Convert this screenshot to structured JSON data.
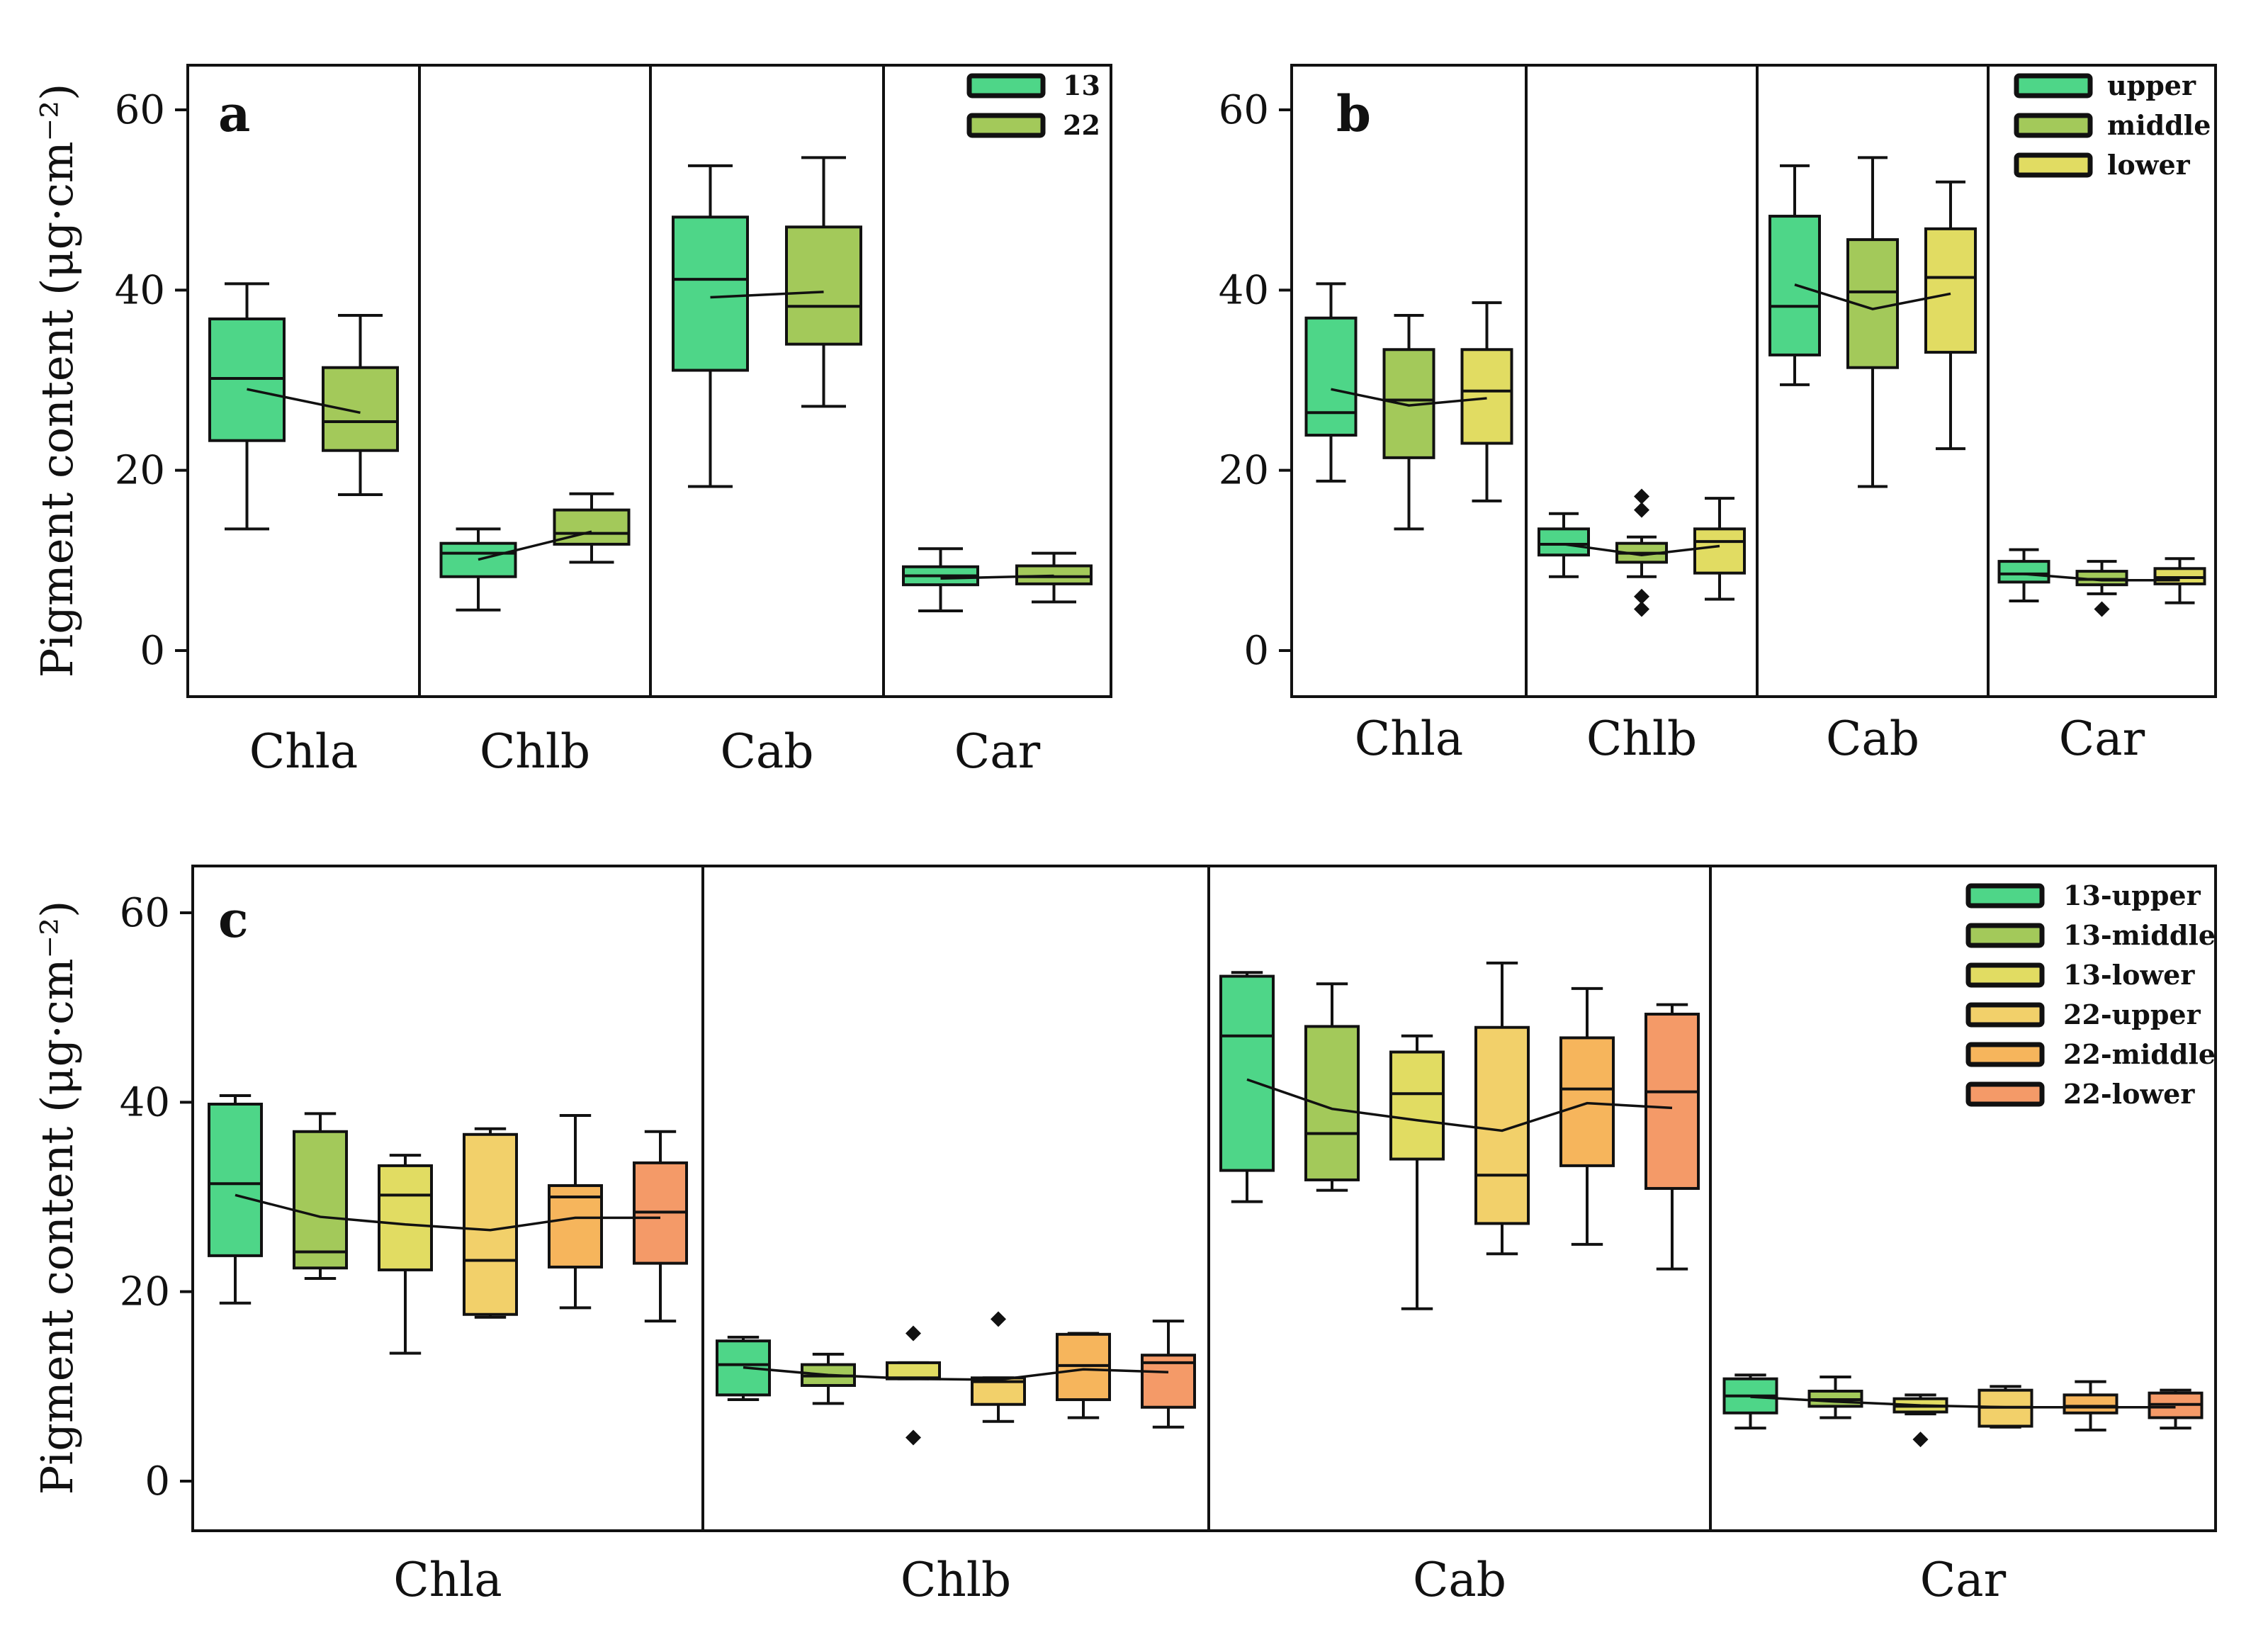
{
  "chart_data": [
    {
      "id": "a",
      "type": "box",
      "panel_label": "a",
      "ylabel": "Pigment content (μg·cm⁻²)",
      "ylim": [
        -5,
        65
      ],
      "yticks": [
        0,
        20,
        40,
        60
      ],
      "categories": [
        "Chla",
        "Chlb",
        "Cab",
        "Car"
      ],
      "legend": [
        "13",
        "22"
      ],
      "colors": [
        "#4ed688",
        "#a3c95a"
      ],
      "groups": [
        {
          "category": "Chla",
          "boxes": [
            {
              "series": "13",
              "min": 13.5,
              "q1": 23.3,
              "median": 30.2,
              "q3": 36.8,
              "max": 40.7,
              "mean": 29,
              "outliers": []
            },
            {
              "series": "22",
              "min": 17.3,
              "q1": 22.2,
              "median": 25.4,
              "q3": 31.4,
              "max": 37.2,
              "mean": 26.4,
              "outliers": []
            }
          ]
        },
        {
          "category": "Chlb",
          "boxes": [
            {
              "series": "13",
              "min": 4.5,
              "q1": 8.2,
              "median": 10.8,
              "q3": 11.9,
              "max": 13.5,
              "mean": 10.1,
              "outliers": []
            },
            {
              "series": "22",
              "min": 9.8,
              "q1": 11.8,
              "median": 13.0,
              "q3": 15.6,
              "max": 17.4,
              "mean": 13.2,
              "outliers": []
            }
          ]
        },
        {
          "category": "Cab",
          "boxes": [
            {
              "series": "13",
              "min": 18.2,
              "q1": 31.1,
              "median": 41.2,
              "q3": 48.1,
              "max": 53.8,
              "mean": 39.2,
              "outliers": []
            },
            {
              "series": "22",
              "min": 27.1,
              "q1": 34.0,
              "median": 38.2,
              "q3": 47.0,
              "max": 54.7,
              "mean": 39.8,
              "outliers": []
            }
          ]
        },
        {
          "category": "Car",
          "boxes": [
            {
              "series": "13",
              "min": 4.4,
              "q1": 7.3,
              "median": 8.3,
              "q3": 9.3,
              "max": 11.3,
              "mean": 8.0,
              "outliers": []
            },
            {
              "series": "22",
              "min": 5.4,
              "q1": 7.4,
              "median": 8.2,
              "q3": 9.4,
              "max": 10.8,
              "mean": 8.3,
              "outliers": []
            }
          ]
        }
      ]
    },
    {
      "id": "b",
      "type": "box",
      "panel_label": "b",
      "ylabel": "",
      "ylim": [
        -5,
        65
      ],
      "yticks": [
        0,
        20,
        40,
        60
      ],
      "categories": [
        "Chla",
        "Chlb",
        "Cab",
        "Car"
      ],
      "legend": [
        "upper",
        "middle",
        "lower"
      ],
      "colors": [
        "#4ed688",
        "#a3c95a",
        "#e1dc62"
      ],
      "groups": [
        {
          "category": "Chla",
          "boxes": [
            {
              "series": "upper",
              "min": 18.8,
              "q1": 23.9,
              "median": 26.4,
              "q3": 36.9,
              "max": 40.7,
              "mean": 29,
              "outliers": []
            },
            {
              "series": "middle",
              "min": 13.5,
              "q1": 21.4,
              "median": 27.8,
              "q3": 33.4,
              "max": 37.2,
              "mean": 27.2,
              "outliers": []
            },
            {
              "series": "lower",
              "min": 16.6,
              "q1": 23.0,
              "median": 28.8,
              "q3": 33.4,
              "max": 38.6,
              "mean": 28.0,
              "outliers": []
            }
          ]
        },
        {
          "category": "Chlb",
          "boxes": [
            {
              "series": "upper",
              "min": 8.2,
              "q1": 10.6,
              "median": 11.8,
              "q3": 13.5,
              "max": 15.2,
              "mean": 11.8,
              "outliers": []
            },
            {
              "series": "middle",
              "min": 8.2,
              "q1": 9.8,
              "median": 10.8,
              "q3": 11.9,
              "max": 12.6,
              "mean": 10.6,
              "outliers": [
                4.6,
                6.0,
                15.6,
                17.1
              ]
            },
            {
              "series": "lower",
              "min": 5.7,
              "q1": 8.6,
              "median": 12.1,
              "q3": 13.5,
              "max": 16.9,
              "mean": 11.6,
              "outliers": []
            }
          ]
        },
        {
          "category": "Cab",
          "boxes": [
            {
              "series": "upper",
              "min": 29.5,
              "q1": 32.8,
              "median": 38.2,
              "q3": 48.2,
              "max": 53.8,
              "mean": 40.6,
              "outliers": []
            },
            {
              "series": "middle",
              "min": 18.2,
              "q1": 31.4,
              "median": 39.8,
              "q3": 45.6,
              "max": 54.7,
              "mean": 37.9,
              "outliers": []
            },
            {
              "series": "lower",
              "min": 22.4,
              "q1": 33.1,
              "median": 41.4,
              "q3": 46.8,
              "max": 52.0,
              "mean": 39.6,
              "outliers": []
            }
          ]
        },
        {
          "category": "Car",
          "boxes": [
            {
              "series": "upper",
              "min": 5.5,
              "q1": 7.6,
              "median": 8.5,
              "q3": 9.9,
              "max": 11.2,
              "mean": 8.5,
              "outliers": []
            },
            {
              "series": "middle",
              "min": 6.3,
              "q1": 7.3,
              "median": 7.9,
              "q3": 8.8,
              "max": 9.9,
              "mean": 7.8,
              "outliers": [
                4.6
              ]
            },
            {
              "series": "lower",
              "min": 5.3,
              "q1": 7.4,
              "median": 8.1,
              "q3": 9.1,
              "max": 10.2,
              "mean": 7.8,
              "outliers": []
            }
          ]
        }
      ]
    },
    {
      "id": "c",
      "type": "box",
      "panel_label": "c",
      "ylabel": "Pigment content (μg·cm⁻²)",
      "ylim": [
        -5,
        65
      ],
      "yticks": [
        0,
        20,
        40,
        60
      ],
      "categories": [
        "Chla",
        "Chlb",
        "Cab",
        "Car"
      ],
      "legend": [
        "13-upper",
        "13-middle",
        "13-lower",
        "22-upper",
        "22-middle",
        "22-lower"
      ],
      "colors": [
        "#4ed688",
        "#a3c95a",
        "#e1dc62",
        "#f2d06a",
        "#f6b55c",
        "#f49a68"
      ],
      "groups": [
        {
          "category": "Chla",
          "boxes": [
            {
              "series": "13-upper",
              "min": 18.8,
              "q1": 23.8,
              "median": 31.4,
              "q3": 39.8,
              "max": 40.7,
              "mean": 30.2,
              "outliers": []
            },
            {
              "series": "13-middle",
              "min": 21.4,
              "q1": 22.5,
              "median": 24.2,
              "q3": 36.9,
              "max": 38.8,
              "mean": 27.9,
              "outliers": []
            },
            {
              "series": "13-lower",
              "min": 13.5,
              "q1": 22.3,
              "median": 30.2,
              "q3": 33.3,
              "max": 34.4,
              "mean": 27.1,
              "outliers": []
            },
            {
              "series": "22-upper",
              "min": 17.3,
              "q1": 17.6,
              "median": 23.3,
              "q3": 36.6,
              "max": 37.2,
              "mean": 26.5,
              "outliers": []
            },
            {
              "series": "22-middle",
              "min": 18.3,
              "q1": 22.6,
              "median": 30.0,
              "q3": 31.2,
              "max": 38.6,
              "mean": 27.8,
              "outliers": []
            },
            {
              "series": "22-lower",
              "min": 16.9,
              "q1": 23.0,
              "median": 28.4,
              "q3": 33.6,
              "max": 36.9,
              "mean": 27.8,
              "outliers": []
            }
          ]
        },
        {
          "category": "Chlb",
          "boxes": [
            {
              "series": "13-upper",
              "min": 8.6,
              "q1": 9.1,
              "median": 12.3,
              "q3": 14.8,
              "max": 15.2,
              "mean": 12.0,
              "outliers": []
            },
            {
              "series": "13-middle",
              "min": 8.2,
              "q1": 10.1,
              "median": 11.1,
              "q3": 12.3,
              "max": 13.4,
              "mean": 11.2,
              "outliers": []
            },
            {
              "series": "13-lower",
              "min": 10.8,
              "q1": 10.8,
              "median": 10.9,
              "q3": 12.5,
              "max": 12.5,
              "mean": 10.8,
              "outliers": [
                4.6,
                15.6
              ]
            },
            {
              "series": "22-upper",
              "min": 6.3,
              "q1": 8.1,
              "median": 10.5,
              "q3": 10.9,
              "max": 10.9,
              "mean": 10.7,
              "outliers": [
                17.1
              ]
            },
            {
              "series": "22-middle",
              "min": 6.7,
              "q1": 8.6,
              "median": 12.2,
              "q3": 15.5,
              "max": 15.6,
              "mean": 11.8,
              "outliers": []
            },
            {
              "series": "22-lower",
              "min": 5.7,
              "q1": 7.8,
              "median": 12.5,
              "q3": 13.3,
              "max": 16.9,
              "mean": 11.5,
              "outliers": []
            }
          ]
        },
        {
          "category": "Cab",
          "boxes": [
            {
              "series": "13-upper",
              "min": 29.5,
              "q1": 32.8,
              "median": 47.0,
              "q3": 53.3,
              "max": 53.7,
              "mean": 42.4,
              "outliers": []
            },
            {
              "series": "13-middle",
              "min": 30.7,
              "q1": 31.8,
              "median": 36.7,
              "q3": 48.0,
              "max": 52.5,
              "mean": 39.3,
              "outliers": []
            },
            {
              "series": "13-lower",
              "min": 18.2,
              "q1": 34.0,
              "median": 40.9,
              "q3": 45.3,
              "max": 47.0,
              "mean": 38.1,
              "outliers": []
            },
            {
              "series": "22-upper",
              "min": 24.0,
              "q1": 27.2,
              "median": 32.3,
              "q3": 47.9,
              "max": 54.7,
              "mean": 37.0,
              "outliers": []
            },
            {
              "series": "22-middle",
              "min": 25.0,
              "q1": 33.3,
              "median": 41.4,
              "q3": 46.8,
              "max": 52.0,
              "mean": 39.9,
              "outliers": []
            },
            {
              "series": "22-lower",
              "min": 22.4,
              "q1": 30.9,
              "median": 41.1,
              "q3": 49.3,
              "max": 50.3,
              "mean": 39.4,
              "outliers": []
            }
          ]
        },
        {
          "category": "Car",
          "boxes": [
            {
              "series": "13-upper",
              "min": 5.6,
              "q1": 7.2,
              "median": 9.0,
              "q3": 10.8,
              "max": 11.2,
              "mean": 8.9,
              "outliers": []
            },
            {
              "series": "13-middle",
              "min": 6.7,
              "q1": 7.9,
              "median": 8.6,
              "q3": 9.5,
              "max": 11.0,
              "mean": 8.4,
              "outliers": []
            },
            {
              "series": "13-lower",
              "min": 7.1,
              "q1": 7.3,
              "median": 7.9,
              "q3": 8.7,
              "max": 9.1,
              "mean": 8.0,
              "outliers": [
                4.4
              ]
            },
            {
              "series": "22-upper",
              "min": 5.7,
              "q1": 5.8,
              "median": 7.8,
              "q3": 9.6,
              "max": 10.0,
              "mean": 7.8,
              "outliers": []
            },
            {
              "series": "22-middle",
              "min": 5.4,
              "q1": 7.2,
              "median": 7.9,
              "q3": 9.1,
              "max": 10.5,
              "mean": 7.8,
              "outliers": []
            },
            {
              "series": "22-lower",
              "min": 5.6,
              "q1": 6.7,
              "median": 8.1,
              "q3": 9.3,
              "max": 9.6,
              "mean": 7.8,
              "outliers": []
            }
          ]
        }
      ]
    }
  ]
}
